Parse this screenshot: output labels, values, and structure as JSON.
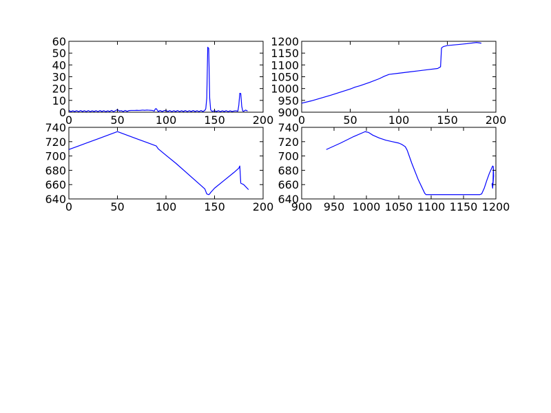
{
  "figure": {
    "background": "#ffffff",
    "line_color": "#0000ff"
  },
  "chart_data": [
    {
      "type": "line",
      "title": "",
      "xlabel": "",
      "ylabel": "",
      "xlim": [
        0,
        200
      ],
      "ylim": [
        0,
        60
      ],
      "xticks": [
        "0",
        "50",
        "100",
        "150",
        "200"
      ],
      "yticks": [
        "0",
        "10",
        "20",
        "30",
        "40",
        "50",
        "60"
      ],
      "grid": false,
      "series": [
        {
          "x": [
            0,
            2,
            4,
            6,
            8,
            10,
            12,
            14,
            16,
            18,
            20,
            22,
            24,
            26,
            28,
            30,
            32,
            34,
            36,
            38,
            40,
            42,
            44,
            46,
            48,
            50,
            52,
            54,
            56,
            58,
            60,
            62,
            64,
            66,
            68,
            70,
            72,
            74,
            76,
            78,
            80,
            82,
            84,
            86,
            88,
            89,
            90,
            91,
            92,
            94,
            96,
            98,
            100,
            102,
            104,
            106,
            108,
            110,
            112,
            114,
            116,
            118,
            120,
            122,
            124,
            126,
            128,
            130,
            132,
            134,
            136,
            138,
            140,
            141,
            142,
            143,
            144,
            145,
            146,
            147,
            148,
            150,
            152,
            154,
            156,
            158,
            160,
            162,
            164,
            166,
            168,
            170,
            172,
            174,
            175,
            176,
            177,
            178,
            179,
            180,
            182,
            184
          ],
          "y": [
            1.5,
            0.5,
            1.2,
            0.6,
            1.3,
            0.5,
            1.4,
            0.6,
            1.3,
            0.5,
            1.4,
            0.5,
            1.2,
            0.6,
            1.3,
            0.5,
            1.4,
            0.6,
            1.3,
            0.5,
            1.2,
            0.6,
            1.5,
            0.5,
            1.3,
            2.2,
            1.0,
            1.3,
            0.6,
            1.5,
            0.7,
            1.4,
            1.5,
            1.5,
            1.5,
            1.6,
            1.5,
            1.6,
            1.8,
            1.6,
            1.8,
            1.7,
            1.6,
            1.5,
            1.0,
            2.8,
            3.0,
            1.8,
            0.6,
            1.4,
            0.6,
            1.3,
            1.5,
            0.6,
            1.4,
            0.5,
            1.3,
            0.6,
            1.4,
            0.5,
            1.3,
            0.6,
            1.4,
            0.5,
            1.3,
            0.6,
            1.4,
            0.6,
            1.3,
            0.5,
            1.4,
            0.6,
            1.5,
            3.0,
            12.0,
            55.0,
            54.0,
            12.0,
            2.0,
            1.0,
            0.8,
            1.2,
            0.6,
            1.3,
            0.5,
            1.2,
            0.6,
            1.3,
            0.5,
            1.2,
            0.6,
            1.0,
            1.2,
            0.8,
            6.0,
            16.0,
            15.8,
            5.0,
            1.0,
            0.8,
            1.8,
            1.0
          ]
        }
      ]
    },
    {
      "type": "line",
      "title": "",
      "xlabel": "",
      "ylabel": "",
      "xlim": [
        0,
        200
      ],
      "ylim": [
        900,
        1200
      ],
      "xticks": [
        "0",
        "50",
        "100",
        "150",
        "200"
      ],
      "yticks": [
        "900",
        "950",
        "1000",
        "1050",
        "1100",
        "1150",
        "1200"
      ],
      "grid": false,
      "series": [
        {
          "x": [
            0,
            10,
            20,
            30,
            40,
            50,
            55,
            60,
            70,
            80,
            85,
            90,
            100,
            110,
            120,
            130,
            140,
            143,
            144,
            146,
            150,
            160,
            170,
            180,
            185
          ],
          "y": [
            938,
            948,
            960,
            972,
            985,
            998,
            1006,
            1012,
            1026,
            1042,
            1052,
            1060,
            1065,
            1070,
            1075,
            1080,
            1085,
            1092,
            1172,
            1178,
            1182,
            1186,
            1190,
            1195,
            1192
          ]
        }
      ]
    },
    {
      "type": "line",
      "title": "",
      "xlabel": "",
      "ylabel": "",
      "xlim": [
        0,
        200
      ],
      "ylim": [
        640,
        740
      ],
      "xticks": [
        "0",
        "50",
        "100",
        "150",
        "200"
      ],
      "yticks": [
        "640",
        "660",
        "680",
        "700",
        "720",
        "740"
      ],
      "grid": false,
      "series": [
        {
          "x": [
            0,
            10,
            20,
            30,
            40,
            50,
            60,
            70,
            80,
            90,
            92,
            100,
            110,
            120,
            130,
            140,
            142,
            144,
            145,
            146,
            150,
            160,
            170,
            175,
            176,
            177,
            180,
            185
          ],
          "y": [
            709,
            714,
            719,
            724,
            729,
            734,
            729,
            724,
            719,
            714,
            710,
            701,
            690,
            678,
            666,
            654,
            647,
            646,
            647,
            649,
            655,
            666,
            677,
            683,
            686,
            662,
            660,
            653
          ]
        }
      ]
    },
    {
      "type": "line",
      "title": "",
      "xlabel": "",
      "ylabel": "",
      "xlim": [
        900,
        1200
      ],
      "ylim": [
        640,
        740
      ],
      "xticks": [
        "900",
        "950",
        "1000",
        "1050",
        "1100",
        "1150",
        "1200"
      ],
      "yticks": [
        "640",
        "660",
        "680",
        "700",
        "720",
        "740"
      ],
      "grid": false,
      "series": [
        {
          "x": [
            938,
            960,
            980,
            998,
            1003,
            1010,
            1020,
            1030,
            1040,
            1050,
            1055,
            1060,
            1063,
            1070,
            1080,
            1090,
            1092,
            1100,
            1120,
            1140,
            1160,
            1175,
            1178,
            1182,
            1186,
            1190,
            1194,
            1195,
            1196,
            1196.5,
            1195,
            1194,
            1195.5,
            1196,
            1196
          ],
          "y": [
            709,
            718,
            727,
            734,
            733,
            729,
            725,
            722,
            720,
            718,
            716,
            713,
            708,
            690,
            667,
            648,
            646,
            646,
            646,
            646,
            646,
            646,
            647,
            655,
            666,
            676,
            684,
            686,
            685,
            672,
            655,
            661,
            663,
            680,
            685
          ]
        }
      ]
    }
  ]
}
